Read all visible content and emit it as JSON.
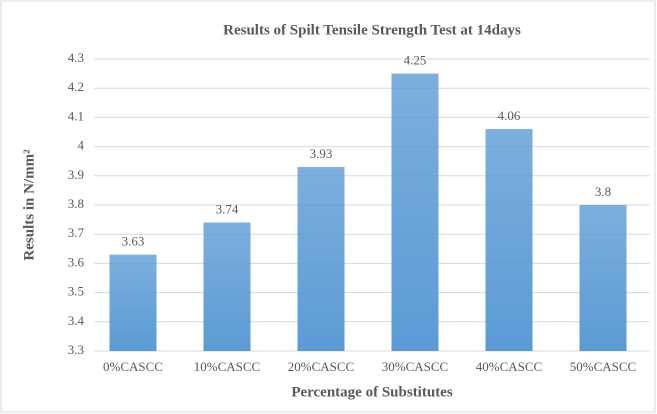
{
  "chart_data": {
    "type": "bar",
    "title": "Results of Spilt Tensile Strength Test at 14days",
    "x_label": "Percentage of Substitutes",
    "y_label": "Results in N/mm²",
    "categories": [
      "0%CASCC",
      "10%CASCC",
      "20%CASCC",
      "30%CASCC",
      "40%CASCC",
      "50%CASCC"
    ],
    "values": [
      3.63,
      3.74,
      3.93,
      4.25,
      4.06,
      3.8
    ],
    "color": "#5b9bd5",
    "ylim": [
      3.3,
      4.3
    ],
    "yticks": [
      3.3,
      3.4,
      3.5,
      3.6,
      3.7,
      3.8,
      3.9,
      4,
      4.1,
      4.2,
      4.3
    ],
    "grid": true
  }
}
